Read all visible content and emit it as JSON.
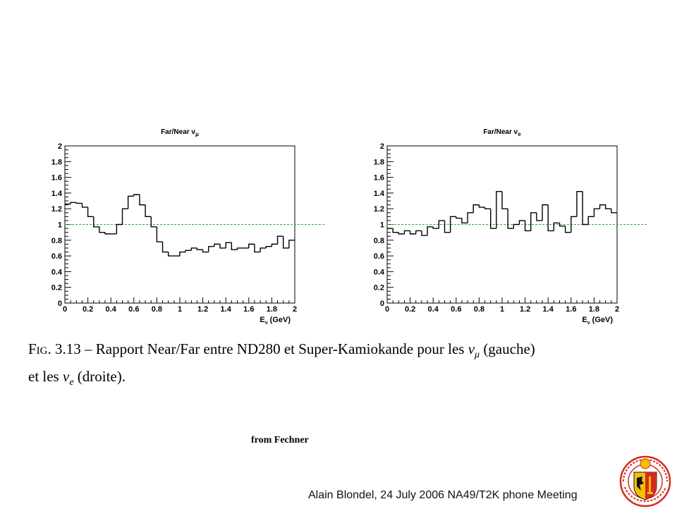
{
  "chart_data": [
    {
      "type": "histogram",
      "title": "Far/Near ν",
      "title_sub": "μ",
      "xlabel": "E",
      "xlabel_sub": "ν",
      "xlabel_unit": " (GeV)",
      "xlim": [
        0,
        2
      ],
      "ylim": [
        0,
        2
      ],
      "x_ticks": [
        "0",
        "0.2",
        "0.4",
        "0.6",
        "0.8",
        "1",
        "1.2",
        "1.4",
        "1.6",
        "1.8",
        "2"
      ],
      "y_ticks": [
        "0",
        "0.2",
        "0.4",
        "0.6",
        "0.8",
        "1",
        "1.2",
        "1.4",
        "1.6",
        "1.8",
        "2"
      ],
      "reference_line": {
        "y": 1,
        "style": "dashed",
        "color": "#33aa33"
      },
      "bin_width": 0.05,
      "values": [
        1.26,
        1.28,
        1.27,
        1.22,
        1.1,
        0.97,
        0.9,
        0.88,
        0.88,
        1.0,
        1.2,
        1.36,
        1.38,
        1.25,
        1.1,
        0.97,
        0.78,
        0.65,
        0.6,
        0.6,
        0.65,
        0.67,
        0.7,
        0.68,
        0.65,
        0.72,
        0.75,
        0.7,
        0.77,
        0.68,
        0.7,
        0.7,
        0.75,
        0.65,
        0.7,
        0.72,
        0.75,
        0.85,
        0.7,
        0.8
      ]
    },
    {
      "type": "histogram",
      "title": "Far/Near ν",
      "title_sub": "e",
      "xlabel": "E",
      "xlabel_sub": "ν",
      "xlabel_unit": " (GeV)",
      "xlim": [
        0,
        2
      ],
      "ylim": [
        0,
        2
      ],
      "x_ticks": [
        "0",
        "0.2",
        "0.4",
        "0.6",
        "0.8",
        "1",
        "1.2",
        "1.4",
        "1.6",
        "1.8",
        "2"
      ],
      "y_ticks": [
        "0",
        "0.2",
        "0.4",
        "0.6",
        "0.8",
        "1",
        "1.2",
        "1.4",
        "1.6",
        "1.8",
        "2"
      ],
      "reference_line": {
        "y": 1,
        "style": "dashed",
        "color": "#33aa33"
      },
      "bin_width": 0.05,
      "values": [
        0.95,
        0.9,
        0.88,
        0.92,
        0.88,
        0.92,
        0.86,
        0.97,
        0.95,
        1.05,
        0.9,
        1.1,
        1.08,
        1.02,
        1.15,
        1.25,
        1.22,
        1.2,
        0.95,
        1.42,
        1.2,
        0.95,
        1.0,
        1.05,
        0.92,
        1.15,
        1.05,
        1.25,
        0.92,
        1.02,
        0.98,
        0.9,
        1.1,
        1.42,
        1.0,
        1.1,
        1.2,
        1.25,
        1.2,
        1.15
      ]
    }
  ],
  "caption": {
    "fig_label": "Fig. 3.13",
    "text_1": " – Rapport Near/Far entre ND280 et Super-Kamiokande pour les ",
    "nu_mu": "ν",
    "nu_mu_sub": "μ",
    "text_2": " (gauche)",
    "text_3": "et les ",
    "nu_e": "ν",
    "nu_e_sub": "e",
    "text_4": " (droite)."
  },
  "credit": "from Fechner",
  "footer": "Alain Blondel, 24 July 2006 NA49/T2K phone Meeting",
  "logo": {
    "icon": "university-of-geneva-seal-icon",
    "ring_text_top": "ISO",
    "ring_text_bottom": "SCHOLA GENEVENSIS",
    "colors": {
      "red": "#d62a1f",
      "yellow": "#f2c200",
      "black": "#111111"
    }
  }
}
